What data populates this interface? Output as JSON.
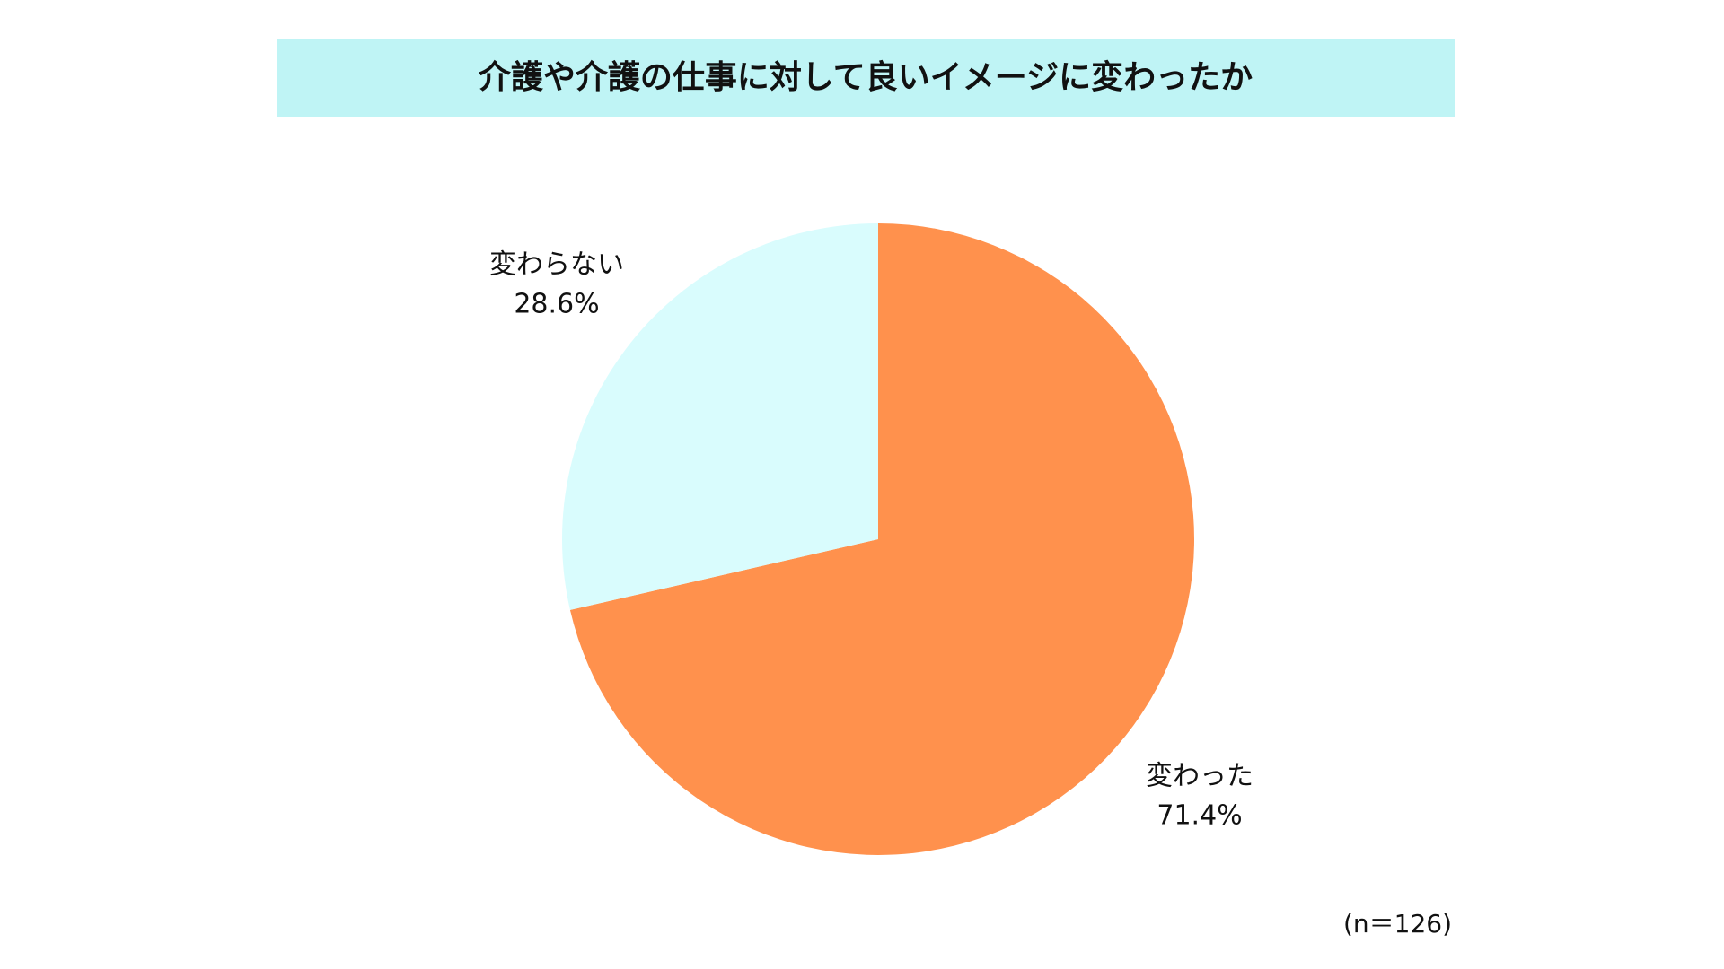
{
  "chart_data": {
    "type": "pie",
    "title": "介護や介護の仕事に対して良いイメージに変わったか",
    "categories": [
      "変わった",
      "変わらない"
    ],
    "values": [
      71.4,
      28.6
    ],
    "value_labels": [
      "71.4%",
      "28.6%"
    ],
    "colors": [
      "#ff914d",
      "#d9fcfd"
    ],
    "title_background": "#bff4f5",
    "note": "(n＝126)"
  }
}
